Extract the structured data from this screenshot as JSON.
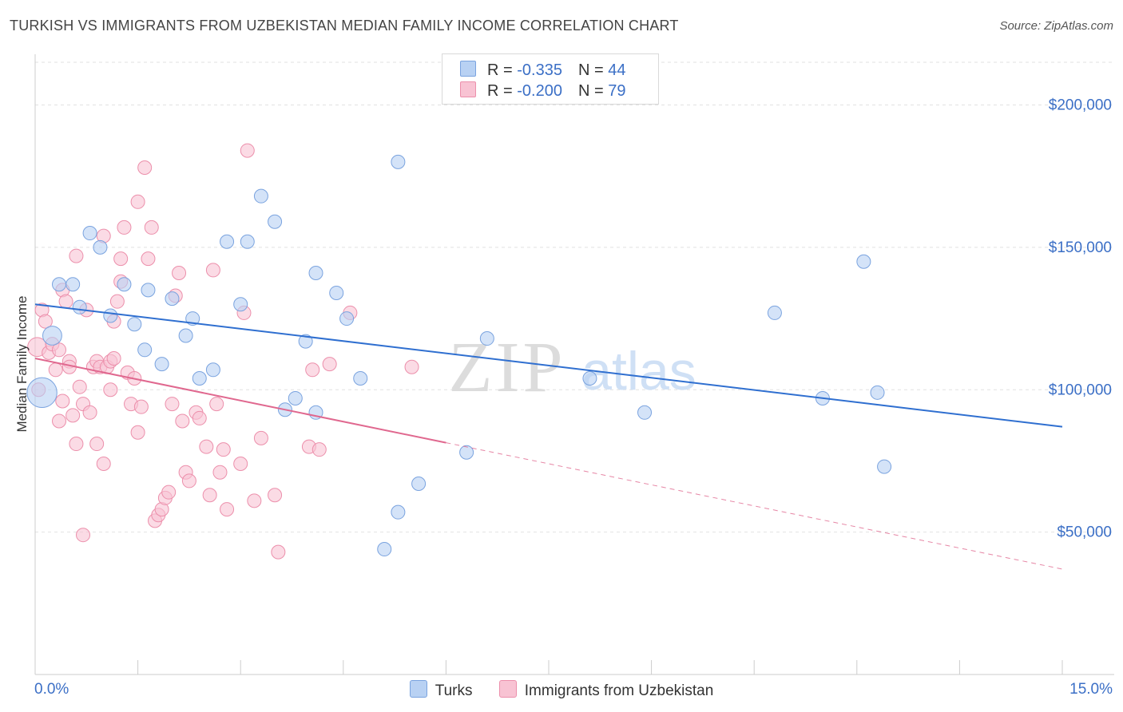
{
  "title": "TURKISH VS IMMIGRANTS FROM UZBEKISTAN MEDIAN FAMILY INCOME CORRELATION CHART",
  "source": "Source: ZipAtlas.com",
  "watermark": {
    "zip": "ZIP",
    "atlas": "atlas"
  },
  "legend": {
    "rows": [
      {
        "r_label": "R = ",
        "r_value": "-0.335",
        "n_label": "N = ",
        "n_value": "44"
      },
      {
        "r_label": "R = ",
        "r_value": "-0.200",
        "n_label": "N = ",
        "n_value": "79"
      }
    ]
  },
  "bottom_legend": {
    "turks": "Turks",
    "uzbek": "Immigrants from Uzbekistan"
  },
  "colors": {
    "turks_fill": "#b8d1f3",
    "turks_stroke": "#7aa3df",
    "turks_line": "#2f6fd0",
    "uzbek_fill": "#f8c3d3",
    "uzbek_stroke": "#ec8fab",
    "uzbek_line": "#e0688f",
    "grid": "#e2e2e2",
    "tick_label": "#3b6fc6"
  },
  "chart_data": {
    "type": "scatter",
    "title": "TURKISH VS IMMIGRANTS FROM UZBEKISTAN MEDIAN FAMILY INCOME CORRELATION CHART",
    "xlabel": "",
    "ylabel": "Median Family Income",
    "xlim": [
      0,
      15
    ],
    "ylim": [
      0,
      215000
    ],
    "x_tick_labels": {
      "left": "0.0%",
      "right": "15.0%"
    },
    "y_ticks": [
      {
        "value": 50000,
        "label": "$50,000"
      },
      {
        "value": 100000,
        "label": "$100,000"
      },
      {
        "value": 150000,
        "label": "$150,000"
      },
      {
        "value": 200000,
        "label": "$200,000"
      }
    ],
    "series": [
      {
        "name": "Turks",
        "r": -0.335,
        "n": 44,
        "trend": {
          "x": [
            0,
            15
          ],
          "y": [
            130000,
            87000
          ]
        },
        "points": [
          [
            0.1,
            99000,
            2.2
          ],
          [
            0.25,
            119000,
            1.4
          ],
          [
            0.35,
            137000,
            1
          ],
          [
            0.55,
            137000,
            1
          ],
          [
            0.65,
            129000,
            1
          ],
          [
            0.8,
            155000,
            1
          ],
          [
            0.95,
            150000,
            1
          ],
          [
            1.1,
            126000,
            1
          ],
          [
            1.3,
            137000,
            1
          ],
          [
            1.45,
            123000,
            1
          ],
          [
            1.6,
            114000,
            1
          ],
          [
            1.65,
            135000,
            1
          ],
          [
            1.85,
            109000,
            1
          ],
          [
            2.0,
            132000,
            1
          ],
          [
            2.2,
            119000,
            1
          ],
          [
            2.3,
            125000,
            1
          ],
          [
            2.4,
            104000,
            1
          ],
          [
            2.6,
            107000,
            1
          ],
          [
            2.8,
            152000,
            1
          ],
          [
            3.0,
            130000,
            1
          ],
          [
            3.1,
            152000,
            1
          ],
          [
            3.3,
            168000,
            1
          ],
          [
            3.5,
            159000,
            1
          ],
          [
            3.65,
            93000,
            1
          ],
          [
            3.8,
            97000,
            1
          ],
          [
            3.95,
            117000,
            1
          ],
          [
            4.1,
            141000,
            1
          ],
          [
            4.4,
            134000,
            1
          ],
          [
            4.1,
            92000,
            1
          ],
          [
            4.55,
            125000,
            1
          ],
          [
            4.75,
            104000,
            1
          ],
          [
            5.1,
            44000,
            1
          ],
          [
            5.3,
            57000,
            1
          ],
          [
            5.3,
            180000,
            1
          ],
          [
            5.6,
            67000,
            1
          ],
          [
            6.3,
            78000,
            1
          ],
          [
            6.6,
            118000,
            1
          ],
          [
            8.1,
            104000,
            1
          ],
          [
            8.9,
            92000,
            1
          ],
          [
            10.8,
            127000,
            1
          ],
          [
            11.5,
            97000,
            1
          ],
          [
            12.1,
            145000,
            1
          ],
          [
            12.3,
            99000,
            1
          ],
          [
            12.4,
            73000,
            1
          ]
        ]
      },
      {
        "name": "Immigrants from Uzbekistan",
        "r": -0.2,
        "n": 79,
        "trend": {
          "x_solid": [
            0,
            6
          ],
          "x_dashed": [
            6,
            15
          ],
          "y_at_0": 111000,
          "y_at_15": 37000
        },
        "points": [
          [
            0.03,
            115000,
            1.4
          ],
          [
            0.05,
            100000,
            1
          ],
          [
            0.1,
            128000,
            1
          ],
          [
            0.15,
            124000,
            1
          ],
          [
            0.2,
            113000,
            1
          ],
          [
            0.25,
            116000,
            1
          ],
          [
            0.3,
            107000,
            1
          ],
          [
            0.35,
            89000,
            1
          ],
          [
            0.4,
            135000,
            1
          ],
          [
            0.45,
            131000,
            1
          ],
          [
            0.5,
            110000,
            1
          ],
          [
            0.5,
            108000,
            1
          ],
          [
            0.55,
            91000,
            1
          ],
          [
            0.6,
            147000,
            1
          ],
          [
            0.6,
            81000,
            1
          ],
          [
            0.65,
            101000,
            1
          ],
          [
            0.7,
            95000,
            1
          ],
          [
            0.7,
            49000,
            1
          ],
          [
            0.75,
            128000,
            1
          ],
          [
            0.8,
            92000,
            1
          ],
          [
            0.85,
            108000,
            1
          ],
          [
            0.9,
            110000,
            1
          ],
          [
            0.95,
            108000,
            1
          ],
          [
            1.0,
            74000,
            1
          ],
          [
            1.0,
            154000,
            1
          ],
          [
            1.05,
            108000,
            1
          ],
          [
            1.1,
            110000,
            1
          ],
          [
            1.15,
            111000,
            1
          ],
          [
            1.15,
            124000,
            1
          ],
          [
            1.2,
            131000,
            1
          ],
          [
            1.25,
            138000,
            1
          ],
          [
            1.3,
            157000,
            1
          ],
          [
            1.35,
            106000,
            1
          ],
          [
            1.4,
            95000,
            1
          ],
          [
            1.45,
            104000,
            1
          ],
          [
            1.5,
            85000,
            1
          ],
          [
            1.5,
            166000,
            1
          ],
          [
            1.55,
            94000,
            1
          ],
          [
            1.6,
            178000,
            1
          ],
          [
            1.65,
            146000,
            1
          ],
          [
            1.7,
            157000,
            1
          ],
          [
            1.75,
            54000,
            1
          ],
          [
            1.8,
            56000,
            1
          ],
          [
            1.85,
            58000,
            1
          ],
          [
            1.9,
            62000,
            1
          ],
          [
            1.95,
            64000,
            1
          ],
          [
            2.0,
            95000,
            1
          ],
          [
            2.05,
            133000,
            1
          ],
          [
            2.1,
            141000,
            1
          ],
          [
            2.15,
            89000,
            1
          ],
          [
            2.2,
            71000,
            1
          ],
          [
            2.25,
            68000,
            1
          ],
          [
            2.35,
            92000,
            1
          ],
          [
            2.4,
            90000,
            1
          ],
          [
            2.5,
            80000,
            1
          ],
          [
            2.55,
            63000,
            1
          ],
          [
            2.6,
            142000,
            1
          ],
          [
            2.65,
            95000,
            1
          ],
          [
            2.7,
            71000,
            1
          ],
          [
            2.75,
            79000,
            1
          ],
          [
            2.8,
            58000,
            1
          ],
          [
            3.0,
            74000,
            1
          ],
          [
            3.05,
            127000,
            1
          ],
          [
            3.1,
            184000,
            1
          ],
          [
            3.2,
            61000,
            1
          ],
          [
            3.3,
            83000,
            1
          ],
          [
            3.5,
            63000,
            1
          ],
          [
            3.55,
            43000,
            1
          ],
          [
            4.0,
            80000,
            1
          ],
          [
            4.05,
            107000,
            1
          ],
          [
            4.15,
            79000,
            1
          ],
          [
            4.3,
            109000,
            1
          ],
          [
            4.6,
            127000,
            1
          ],
          [
            5.5,
            108000,
            1
          ],
          [
            0.4,
            96000,
            1
          ],
          [
            0.9,
            81000,
            1
          ],
          [
            1.25,
            146000,
            1
          ],
          [
            0.35,
            114000,
            1
          ],
          [
            1.1,
            100000,
            1
          ]
        ]
      }
    ]
  }
}
